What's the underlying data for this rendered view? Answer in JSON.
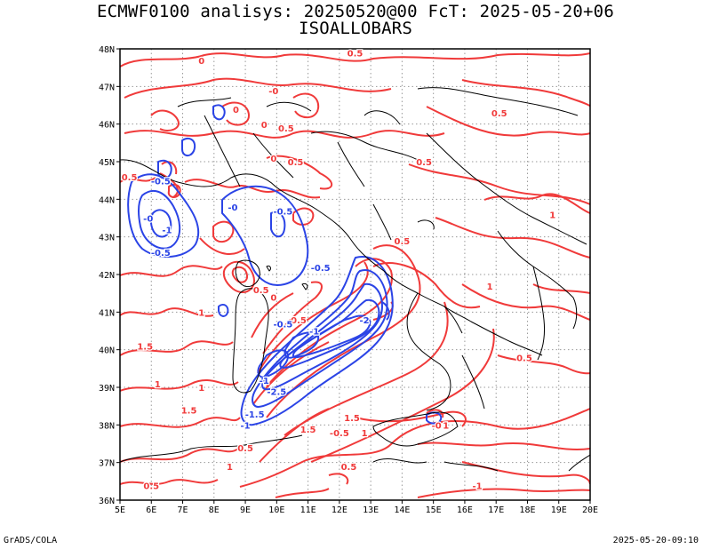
{
  "header": {
    "title_line1": "ECMWF0100 analisys: 20250520@00 FcT: 2025-05-20+06",
    "title_line2": "ISOALLOBARS"
  },
  "footer": {
    "left": "GrADS/COLA",
    "right": "2025-05-20-09:10"
  },
  "map": {
    "lon_ticks": [
      "5E",
      "6E",
      "7E",
      "8E",
      "9E",
      "10E",
      "11E",
      "12E",
      "13E",
      "14E",
      "15E",
      "16E",
      "17E",
      "18E",
      "19E",
      "20E"
    ],
    "lat_ticks": [
      "36N",
      "37N",
      "38N",
      "39N",
      "40N",
      "41N",
      "42N",
      "43N",
      "44N",
      "45N",
      "46N",
      "47N",
      "48N"
    ],
    "lon_range": [
      5,
      20
    ],
    "lat_range": [
      36,
      48
    ],
    "gridlines": true,
    "colors": {
      "positive_contour": "#f03a3a",
      "negative_contour": "#2b44e6",
      "coastline": "#000000",
      "grid": "#9a9a9a"
    }
  },
  "contour_labels": [
    {
      "text": "0.5",
      "lon": 12.5,
      "lat": 47.8,
      "sign": "pos"
    },
    {
      "text": "0",
      "lon": 7.6,
      "lat": 47.6,
      "sign": "pos"
    },
    {
      "text": "-0",
      "lon": 9.9,
      "lat": 46.8,
      "sign": "pos"
    },
    {
      "text": "0.5",
      "lon": 17.1,
      "lat": 46.2,
      "sign": "pos"
    },
    {
      "text": "0",
      "lon": 9.6,
      "lat": 45.9,
      "sign": "pos"
    },
    {
      "text": "0",
      "lon": 8.7,
      "lat": 46.3,
      "sign": "pos"
    },
    {
      "text": "0.5",
      "lon": 10.3,
      "lat": 45.8,
      "sign": "pos"
    },
    {
      "text": "0.5",
      "lon": 10.6,
      "lat": 44.9,
      "sign": "pos"
    },
    {
      "text": "0",
      "lon": 9.9,
      "lat": 45.0,
      "sign": "pos"
    },
    {
      "text": "0.5",
      "lon": 14.7,
      "lat": 44.9,
      "sign": "pos"
    },
    {
      "text": "0.5",
      "lon": 5.3,
      "lat": 44.5,
      "sign": "pos"
    },
    {
      "text": "-0.5",
      "lon": 6.3,
      "lat": 44.4,
      "sign": "neg"
    },
    {
      "text": "-0.5",
      "lon": 10.2,
      "lat": 43.6,
      "sign": "neg"
    },
    {
      "text": "-0",
      "lon": 8.6,
      "lat": 43.7,
      "sign": "neg"
    },
    {
      "text": "-1",
      "lon": 6.5,
      "lat": 43.1,
      "sign": "neg"
    },
    {
      "text": "-0",
      "lon": 5.9,
      "lat": 43.4,
      "sign": "neg"
    },
    {
      "text": "-0.5",
      "lon": 6.3,
      "lat": 42.5,
      "sign": "neg"
    },
    {
      "text": "0.5",
      "lon": 14.0,
      "lat": 42.8,
      "sign": "pos"
    },
    {
      "text": "-0.5",
      "lon": 11.4,
      "lat": 42.1,
      "sign": "neg"
    },
    {
      "text": "0.5",
      "lon": 9.5,
      "lat": 41.5,
      "sign": "pos"
    },
    {
      "text": "0",
      "lon": 9.9,
      "lat": 41.3,
      "sign": "pos"
    },
    {
      "text": "1",
      "lon": 7.6,
      "lat": 40.9,
      "sign": "pos"
    },
    {
      "text": "0.5",
      "lon": 10.7,
      "lat": 40.7,
      "sign": "pos"
    },
    {
      "text": "-0.5",
      "lon": 10.2,
      "lat": 40.6,
      "sign": "neg"
    },
    {
      "text": "-2",
      "lon": 12.8,
      "lat": 40.7,
      "sign": "neg"
    },
    {
      "text": "-1",
      "lon": 11.2,
      "lat": 40.4,
      "sign": "neg"
    },
    {
      "text": "1.5",
      "lon": 5.8,
      "lat": 40.0,
      "sign": "pos"
    },
    {
      "text": "-2.5",
      "lon": 10.0,
      "lat": 38.8,
      "sign": "neg"
    },
    {
      "text": "-1",
      "lon": 9.6,
      "lat": 39.1,
      "sign": "neg"
    },
    {
      "text": "1",
      "lon": 6.2,
      "lat": 39.0,
      "sign": "pos"
    },
    {
      "text": "1.5",
      "lon": 7.2,
      "lat": 38.3,
      "sign": "pos"
    },
    {
      "text": "1",
      "lon": 7.6,
      "lat": 38.9,
      "sign": "pos"
    },
    {
      "text": "-1.5",
      "lon": 9.3,
      "lat": 38.2,
      "sign": "neg"
    },
    {
      "text": "-1",
      "lon": 9.0,
      "lat": 37.9,
      "sign": "neg"
    },
    {
      "text": "1",
      "lon": 12.8,
      "lat": 37.7,
      "sign": "pos"
    },
    {
      "text": "1.5",
      "lon": 12.4,
      "lat": 38.1,
      "sign": "pos"
    },
    {
      "text": "1.5",
      "lon": 11.0,
      "lat": 37.8,
      "sign": "pos"
    },
    {
      "text": "-0.5",
      "lon": 12.0,
      "lat": 37.7,
      "sign": "pos"
    },
    {
      "text": "-0",
      "lon": 15.1,
      "lat": 37.9,
      "sign": "pos"
    },
    {
      "text": "1",
      "lon": 15.4,
      "lat": 37.9,
      "sign": "pos"
    },
    {
      "text": "0.5",
      "lon": 9.0,
      "lat": 37.3,
      "sign": "pos"
    },
    {
      "text": "0.5",
      "lon": 12.3,
      "lat": 36.8,
      "sign": "pos"
    },
    {
      "text": "1",
      "lon": 8.5,
      "lat": 36.8,
      "sign": "pos"
    },
    {
      "text": "0.5",
      "lon": 6.0,
      "lat": 36.3,
      "sign": "pos"
    },
    {
      "text": "-1",
      "lon": 16.4,
      "lat": 36.3,
      "sign": "pos"
    },
    {
      "text": "0.5",
      "lon": 17.9,
      "lat": 39.7,
      "sign": "pos"
    },
    {
      "text": "1",
      "lon": 16.8,
      "lat": 41.6,
      "sign": "pos"
    },
    {
      "text": "1",
      "lon": 18.8,
      "lat": 43.5,
      "sign": "pos"
    }
  ]
}
